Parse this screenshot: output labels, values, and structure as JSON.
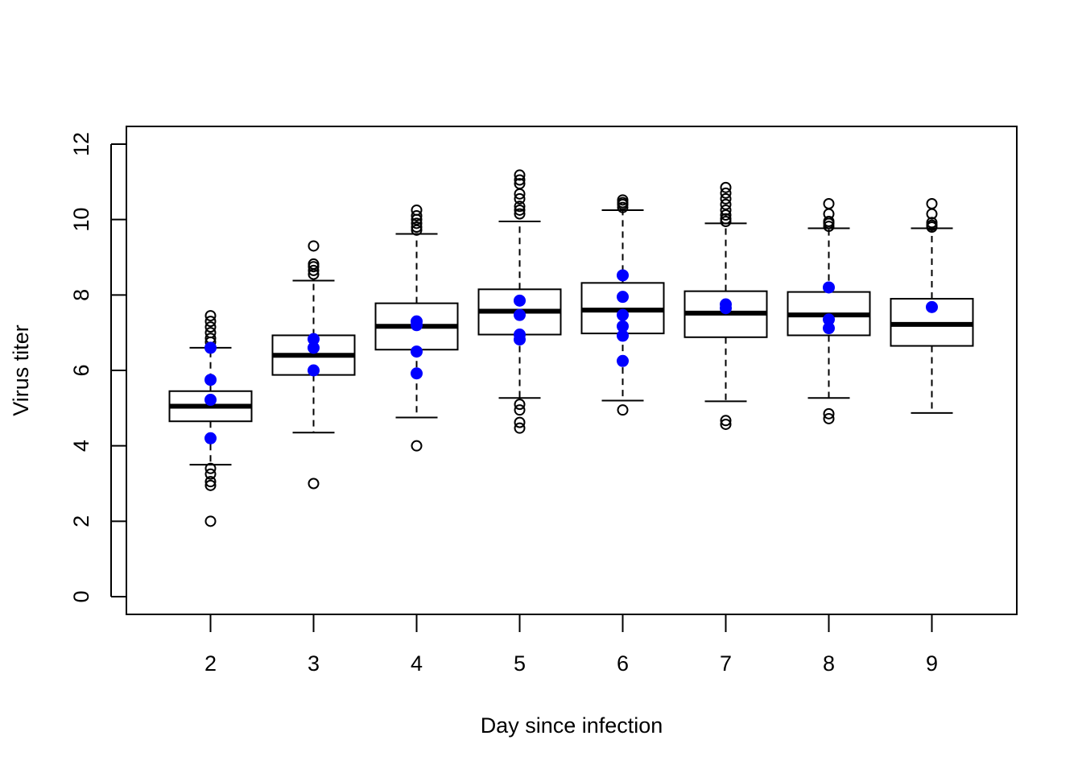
{
  "chart_data": {
    "type": "boxplot",
    "xlabel": "Day since infection",
    "ylabel": "Virus titer",
    "ylim": [
      0,
      12
    ],
    "y_ticks": [
      0,
      2,
      4,
      6,
      8,
      10,
      12
    ],
    "categories": [
      "2",
      "3",
      "4",
      "5",
      "6",
      "7",
      "8",
      "9"
    ],
    "boxes": [
      {
        "day": "2",
        "whisker_low": 3.5,
        "q1": 4.65,
        "median": 5.05,
        "q3": 5.45,
        "whisker_high": 6.6,
        "outliers": [
          2.0,
          2.95,
          3.05,
          3.25,
          3.4,
          6.75,
          6.85,
          7.0,
          7.15,
          7.3,
          7.45
        ]
      },
      {
        "day": "3",
        "whisker_low": 4.35,
        "q1": 5.88,
        "median": 6.4,
        "q3": 6.93,
        "whisker_high": 8.38,
        "outliers": [
          3.0,
          8.55,
          8.65,
          8.75,
          8.82,
          9.3
        ]
      },
      {
        "day": "4",
        "whisker_low": 4.75,
        "q1": 6.55,
        "median": 7.17,
        "q3": 7.78,
        "whisker_high": 9.62,
        "outliers": [
          4.0,
          9.72,
          9.8,
          9.9,
          10.0,
          10.1,
          10.25
        ]
      },
      {
        "day": "5",
        "whisker_low": 5.27,
        "q1": 6.95,
        "median": 7.57,
        "q3": 8.15,
        "whisker_high": 9.95,
        "outliers": [
          4.47,
          4.62,
          4.95,
          5.1,
          10.15,
          10.25,
          10.35,
          10.55,
          10.68,
          10.95,
          11.05,
          11.18
        ]
      },
      {
        "day": "6",
        "whisker_low": 5.2,
        "q1": 6.98,
        "median": 7.6,
        "q3": 8.32,
        "whisker_high": 10.25,
        "outliers": [
          4.95,
          10.32,
          10.4,
          10.45,
          10.52
        ]
      },
      {
        "day": "7",
        "whisker_low": 5.18,
        "q1": 6.88,
        "median": 7.52,
        "q3": 8.1,
        "whisker_high": 9.9,
        "outliers": [
          4.57,
          4.67,
          9.95,
          10.02,
          10.12,
          10.25,
          10.4,
          10.55,
          10.7,
          10.85
        ]
      },
      {
        "day": "8",
        "whisker_low": 5.27,
        "q1": 6.93,
        "median": 7.47,
        "q3": 8.08,
        "whisker_high": 9.77,
        "outliers": [
          4.72,
          4.85,
          9.82,
          9.9,
          9.95,
          10.15,
          10.42
        ]
      },
      {
        "day": "9",
        "whisker_low": 4.87,
        "q1": 6.65,
        "median": 7.22,
        "q3": 7.9,
        "whisker_high": 9.77,
        "outliers": [
          9.8,
          9.85,
          9.92,
          10.15,
          10.42
        ]
      }
    ],
    "observed_points": {
      "color": "#0000ff",
      "points": [
        {
          "day": "2",
          "values": [
            4.2,
            5.22,
            5.75,
            6.6
          ]
        },
        {
          "day": "3",
          "values": [
            6.0,
            6.6,
            6.83
          ]
        },
        {
          "day": "4",
          "values": [
            5.92,
            6.5,
            7.2,
            7.3
          ]
        },
        {
          "day": "5",
          "values": [
            6.82,
            6.95,
            7.47,
            7.85
          ]
        },
        {
          "day": "6",
          "values": [
            6.25,
            6.92,
            7.17,
            7.47,
            7.95,
            8.52
          ]
        },
        {
          "day": "7",
          "values": [
            7.65,
            7.75
          ]
        },
        {
          "day": "8",
          "values": [
            7.12,
            7.35,
            8.2
          ]
        },
        {
          "day": "9",
          "values": [
            7.68
          ]
        }
      ]
    },
    "grid": false,
    "legend": "none"
  }
}
